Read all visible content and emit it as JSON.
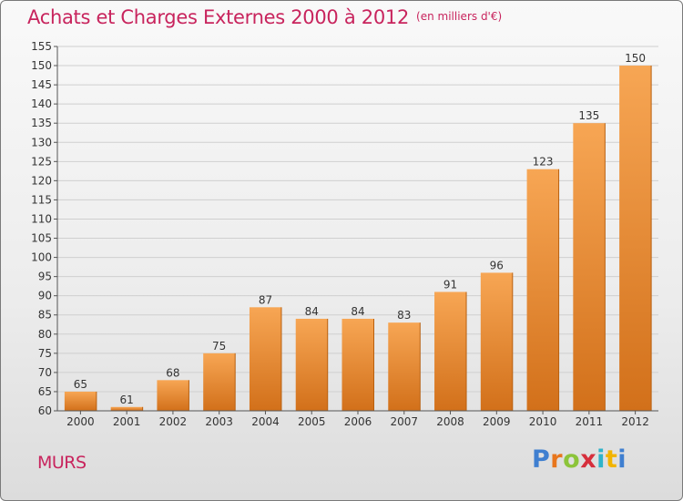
{
  "title": "Achats et Charges Externes 2000 à 2012",
  "unit_note": "(en milliers d'€)",
  "place_label": "MURS",
  "logo": {
    "text": "Proxiti"
  },
  "colors": {
    "title": "#c8245d",
    "bar_light": "#f7a654",
    "bar_dark": "#d2701a",
    "axis": "#555555"
  },
  "chart_data": {
    "type": "bar",
    "title": "Achats et Charges Externes 2000 à 2012",
    "xlabel": "",
    "ylabel": "",
    "categories": [
      "2000",
      "2001",
      "2002",
      "2003",
      "2004",
      "2005",
      "2006",
      "2007",
      "2008",
      "2009",
      "2010",
      "2011",
      "2012"
    ],
    "values": [
      65,
      61,
      68,
      75,
      87,
      84,
      84,
      83,
      91,
      96,
      123,
      135,
      150
    ],
    "ylim": [
      60,
      155
    ],
    "yticks": [
      60,
      65,
      70,
      75,
      80,
      85,
      90,
      95,
      100,
      105,
      110,
      115,
      120,
      125,
      130,
      135,
      140,
      145,
      150,
      155
    ],
    "grid": true,
    "data_labels": true,
    "legend": "none"
  }
}
